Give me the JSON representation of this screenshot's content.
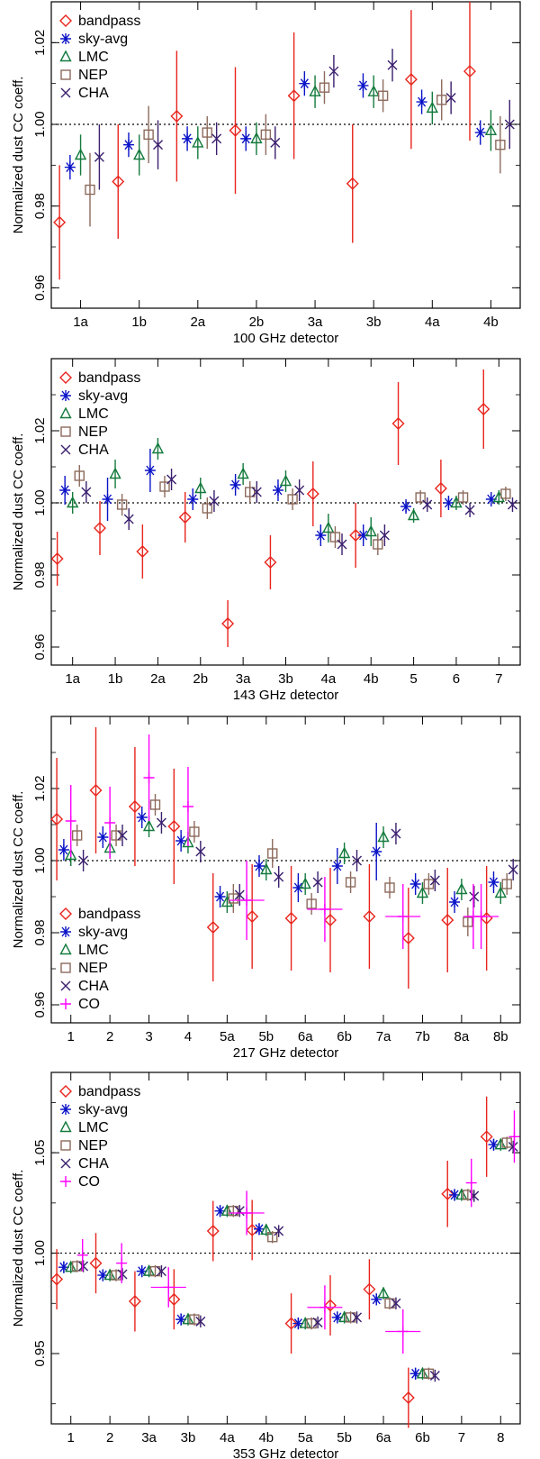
{
  "colors": {
    "bandpass": "#e8241c",
    "sky-avg": "#0a13c7",
    "LMC": "#137a3c",
    "NEP": "#8c6a5c",
    "CHA": "#3a1f6e",
    "CO": "#ff00ff"
  },
  "series_info": [
    {
      "name": "bandpass",
      "marker": "diamond"
    },
    {
      "name": "sky-avg",
      "marker": "asterisk"
    },
    {
      "name": "LMC",
      "marker": "triangle"
    },
    {
      "name": "NEP",
      "marker": "square"
    },
    {
      "name": "CHA",
      "marker": "x"
    },
    {
      "name": "CO",
      "marker": "plus"
    }
  ],
  "chart_data": [
    {
      "type": "scatter",
      "title": "",
      "xlabel": "100 GHz detector",
      "ylabel": "Normalized dust CC coeff.",
      "ylim": [
        0.955,
        1.03
      ],
      "yticks": [
        0.96,
        0.98,
        1.0,
        1.02
      ],
      "ytick_labels": [
        "0.96",
        "0.98",
        "1.00",
        "1.02"
      ],
      "reference_line": 1.0,
      "legend": [
        "bandpass",
        "sky-avg",
        "LMC",
        "NEP",
        "CHA"
      ],
      "legend_position": "top-left",
      "categories": [
        "1a",
        "1b",
        "2a",
        "2b",
        "3a",
        "3b",
        "4a",
        "4b"
      ],
      "series": [
        {
          "name": "bandpass",
          "values": [
            0.976,
            0.986,
            1.002,
            0.9985,
            1.007,
            0.9855,
            1.011,
            1.013
          ],
          "errors": [
            0.014,
            0.014,
            0.016,
            0.0155,
            0.0155,
            0.0145,
            0.017,
            0.017
          ]
        },
        {
          "name": "sky-avg",
          "values": [
            0.9895,
            0.995,
            0.9965,
            0.9965,
            1.01,
            1.0095,
            1.0055,
            0.998
          ],
          "errors": [
            0.003,
            0.003,
            0.003,
            0.003,
            0.003,
            0.003,
            0.003,
            0.003
          ]
        },
        {
          "name": "LMC",
          "values": [
            0.9925,
            0.9925,
            0.9955,
            0.9965,
            1.008,
            1.008,
            1.004,
            0.9985
          ],
          "errors": [
            0.005,
            0.005,
            0.004,
            0.004,
            0.004,
            0.004,
            0.004,
            0.005
          ]
        },
        {
          "name": "NEP",
          "values": [
            0.984,
            0.9975,
            0.998,
            0.9975,
            1.009,
            1.007,
            1.006,
            0.995
          ],
          "errors": [
            0.009,
            0.007,
            0.004,
            0.005,
            0.004,
            0.004,
            0.005,
            0.007
          ]
        },
        {
          "name": "CHA",
          "values": [
            0.992,
            0.995,
            0.9965,
            0.9955,
            1.013,
            1.0145,
            1.0065,
            1.0
          ],
          "errors": [
            0.008,
            0.006,
            0.004,
            0.004,
            0.004,
            0.004,
            0.004,
            0.006
          ]
        }
      ]
    },
    {
      "type": "scatter",
      "title": "",
      "xlabel": "143 GHz detector",
      "ylabel": "Normalized dust CC coeff.",
      "ylim": [
        0.955,
        1.04
      ],
      "yticks": [
        0.96,
        0.98,
        1.0,
        1.02
      ],
      "ytick_labels": [
        "0.96",
        "0.98",
        "1.00",
        "1.02"
      ],
      "reference_line": 1.0,
      "legend": [
        "bandpass",
        "sky-avg",
        "LMC",
        "NEP",
        "CHA"
      ],
      "legend_position": "top-left",
      "categories": [
        "1a",
        "1b",
        "2a",
        "2b",
        "3a",
        "3b",
        "4a",
        "4b",
        "5",
        "6",
        "7"
      ],
      "series": [
        {
          "name": "bandpass",
          "values": [
            0.9845,
            0.993,
            0.9865,
            0.996,
            0.9665,
            0.9835,
            1.0025,
            0.991,
            1.022,
            1.004,
            1.026
          ],
          "errors": [
            0.0075,
            0.0075,
            0.0075,
            0.007,
            0.0065,
            0.0075,
            0.009,
            0.009,
            0.0115,
            0.008,
            0.011
          ]
        },
        {
          "name": "sky-avg",
          "values": [
            1.0035,
            1.001,
            1.009,
            1.001,
            1.005,
            1.0035,
            0.991,
            0.991,
            0.999,
            1.0,
            1.001
          ],
          "errors": [
            0.004,
            0.006,
            0.006,
            0.003,
            0.003,
            0.003,
            0.003,
            0.003,
            0.002,
            0.002,
            0.002
          ]
        },
        {
          "name": "LMC",
          "values": [
            1.0,
            1.008,
            1.015,
            1.004,
            1.008,
            1.006,
            0.993,
            0.992,
            0.9965,
            1.0,
            1.0015
          ],
          "errors": [
            0.003,
            0.004,
            0.003,
            0.003,
            0.003,
            0.003,
            0.004,
            0.004,
            0.002,
            0.002,
            0.002
          ]
        },
        {
          "name": "NEP",
          "values": [
            1.0075,
            0.9995,
            1.0045,
            0.9985,
            1.003,
            1.001,
            0.9905,
            0.9885,
            1.0015,
            1.0015,
            1.0025
          ],
          "errors": [
            0.003,
            0.003,
            0.003,
            0.003,
            0.003,
            0.003,
            0.003,
            0.003,
            0.002,
            0.002,
            0.002
          ]
        },
        {
          "name": "CHA",
          "values": [
            1.003,
            0.9955,
            1.0065,
            1.0005,
            1.003,
            1.0035,
            0.9885,
            0.991,
            0.9995,
            0.998,
            0.9995
          ],
          "errors": [
            0.003,
            0.003,
            0.003,
            0.003,
            0.003,
            0.003,
            0.003,
            0.003,
            0.002,
            0.002,
            0.002
          ]
        }
      ]
    },
    {
      "type": "scatter",
      "title": "",
      "xlabel": "217 GHz detector",
      "ylabel": "Normalized dust CC coeff.",
      "ylim": [
        0.955,
        1.04
      ],
      "yticks": [
        0.96,
        0.98,
        1.0,
        1.02
      ],
      "ytick_labels": [
        "0.96",
        "0.98",
        "1.00",
        "1.02"
      ],
      "reference_line": 1.0,
      "legend": [
        "bandpass",
        "sky-avg",
        "LMC",
        "NEP",
        "CHA",
        "CO"
      ],
      "legend_position": "bottom-left",
      "categories": [
        "1",
        "2",
        "3",
        "4",
        "5a",
        "5b",
        "6a",
        "6b",
        "7a",
        "7b",
        "8a",
        "8b"
      ],
      "series": [
        {
          "name": "bandpass",
          "values": [
            1.0115,
            1.0195,
            1.015,
            1.0095,
            0.9815,
            0.9845,
            0.984,
            0.9835,
            0.9845,
            0.9785,
            0.9835,
            0.984
          ],
          "errors": [
            0.017,
            0.0175,
            0.0165,
            0.016,
            0.015,
            0.0145,
            0.0145,
            0.0145,
            0.0145,
            0.014,
            0.0145,
            0.0145
          ]
        },
        {
          "name": "sky-avg",
          "values": [
            1.003,
            1.0065,
            1.012,
            1.0055,
            0.99,
            0.9985,
            0.9925,
            0.9985,
            1.0025,
            0.9935,
            0.9885,
            0.994
          ],
          "errors": [
            0.003,
            0.003,
            0.003,
            0.003,
            0.003,
            0.003,
            0.004,
            0.005,
            0.008,
            0.003,
            0.003,
            0.003
          ]
        },
        {
          "name": "LMC",
          "values": [
            1.0015,
            1.0035,
            1.0095,
            1.005,
            0.9885,
            0.9975,
            0.9935,
            1.002,
            1.0065,
            0.991,
            0.992,
            0.991
          ],
          "errors": [
            0.003,
            0.003,
            0.003,
            0.003,
            0.003,
            0.003,
            0.003,
            0.003,
            0.003,
            0.003,
            0.003,
            0.003
          ]
        },
        {
          "name": "NEP",
          "values": [
            1.007,
            1.007,
            1.0155,
            1.008,
            0.9895,
            1.002,
            0.988,
            0.994,
            0.9925,
            0.9935,
            0.983,
            0.9935
          ],
          "errors": [
            0.003,
            0.003,
            0.003,
            0.003,
            0.004,
            0.004,
            0.003,
            0.003,
            0.003,
            0.003,
            0.004,
            0.003
          ]
        },
        {
          "name": "CHA",
          "values": [
            1.0,
            1.007,
            1.0105,
            1.0025,
            0.9905,
            0.9955,
            0.994,
            1.0,
            1.0075,
            0.9945,
            0.99,
            0.9975
          ],
          "errors": [
            0.003,
            0.003,
            0.003,
            0.003,
            0.003,
            0.003,
            0.003,
            0.003,
            0.003,
            0.003,
            0.003,
            0.003
          ]
        },
        {
          "name": "CO",
          "values": [
            1.011,
            1.0105,
            1.023,
            1.015,
            0.989,
            0.9865,
            0.9845,
            0.9845,
            0.9845
          ],
          "errors": [
            0.01,
            0.01,
            0.012,
            0.011,
            0.011,
            0.009,
            0.009,
            0.009,
            0.009
          ],
          "x_index": [
            0,
            1,
            2,
            3,
            4.5,
            6.5,
            8.5,
            10.5,
            10.3
          ],
          "x_halfwidth": [
            0,
            0,
            0,
            0,
            0.45,
            0.45,
            0.45,
            0.45,
            0
          ]
        }
      ]
    },
    {
      "type": "scatter",
      "title": "",
      "xlabel": "353 GHz detector",
      "ylabel": "Normalized dust CC coeff.",
      "ylim": [
        0.915,
        1.09
      ],
      "yticks": [
        0.95,
        1.0,
        1.05
      ],
      "ytick_labels": [
        "0.95",
        "1.00",
        "1.05"
      ],
      "reference_line": 1.0,
      "legend": [
        "bandpass",
        "sky-avg",
        "LMC",
        "NEP",
        "CHA",
        "CO"
      ],
      "legend_position": "top-left",
      "categories": [
        "1",
        "2",
        "3a",
        "3b",
        "4a",
        "4b",
        "5a",
        "5b",
        "6a",
        "6b",
        "7",
        "8"
      ],
      "series": [
        {
          "name": "bandpass",
          "values": [
            0.987,
            0.995,
            0.976,
            0.977,
            1.011,
            1.0115,
            0.965,
            0.974,
            0.982,
            0.928,
            1.0295,
            1.058
          ],
          "errors": [
            0.015,
            0.015,
            0.015,
            0.015,
            0.015,
            0.015,
            0.015,
            0.015,
            0.015,
            0.015,
            0.0165,
            0.02
          ]
        },
        {
          "name": "sky-avg",
          "values": [
            0.993,
            0.989,
            0.991,
            0.967,
            1.021,
            1.012,
            0.965,
            0.968,
            0.977,
            0.94,
            1.029,
            1.054
          ],
          "errors": [
            0.003,
            0.003,
            0.003,
            0.003,
            0.003,
            0.003,
            0.003,
            0.003,
            0.003,
            0.003,
            0.003,
            0.003
          ]
        },
        {
          "name": "LMC",
          "values": [
            0.993,
            0.989,
            0.991,
            0.967,
            1.021,
            1.0115,
            0.965,
            0.968,
            0.98,
            0.94,
            1.029,
            1.054
          ],
          "errors": [
            0.003,
            0.003,
            0.003,
            0.003,
            0.003,
            0.003,
            0.003,
            0.003,
            0.003,
            0.003,
            0.003,
            0.003
          ]
        },
        {
          "name": "NEP",
          "values": [
            0.9935,
            0.989,
            0.991,
            0.967,
            1.021,
            1.008,
            0.965,
            0.968,
            0.975,
            0.94,
            1.029,
            1.055
          ],
          "errors": [
            0.003,
            0.003,
            0.003,
            0.003,
            0.003,
            0.003,
            0.003,
            0.003,
            0.003,
            0.003,
            0.003,
            0.003
          ]
        },
        {
          "name": "CHA",
          "values": [
            0.9935,
            0.9895,
            0.991,
            0.966,
            1.021,
            1.011,
            0.9655,
            0.968,
            0.975,
            0.939,
            1.0285,
            1.053
          ],
          "errors": [
            0.003,
            0.003,
            0.003,
            0.003,
            0.003,
            0.003,
            0.003,
            0.003,
            0.003,
            0.003,
            0.003,
            0.003
          ]
        },
        {
          "name": "CO",
          "values": [
            0.999,
            0.995,
            0.983,
            1.02,
            0.973,
            0.961,
            1.035,
            1.058
          ],
          "errors": [
            0.008,
            0.01,
            0.01,
            0.011,
            0.011,
            0.011,
            0.012,
            0.013
          ],
          "x_index": [
            0.3,
            1.3,
            2.5,
            4.5,
            6.5,
            8.5,
            10.25,
            11.35
          ],
          "x_halfwidth": [
            0,
            0,
            0.45,
            0.45,
            0.45,
            0.45,
            0,
            0
          ]
        }
      ]
    }
  ]
}
